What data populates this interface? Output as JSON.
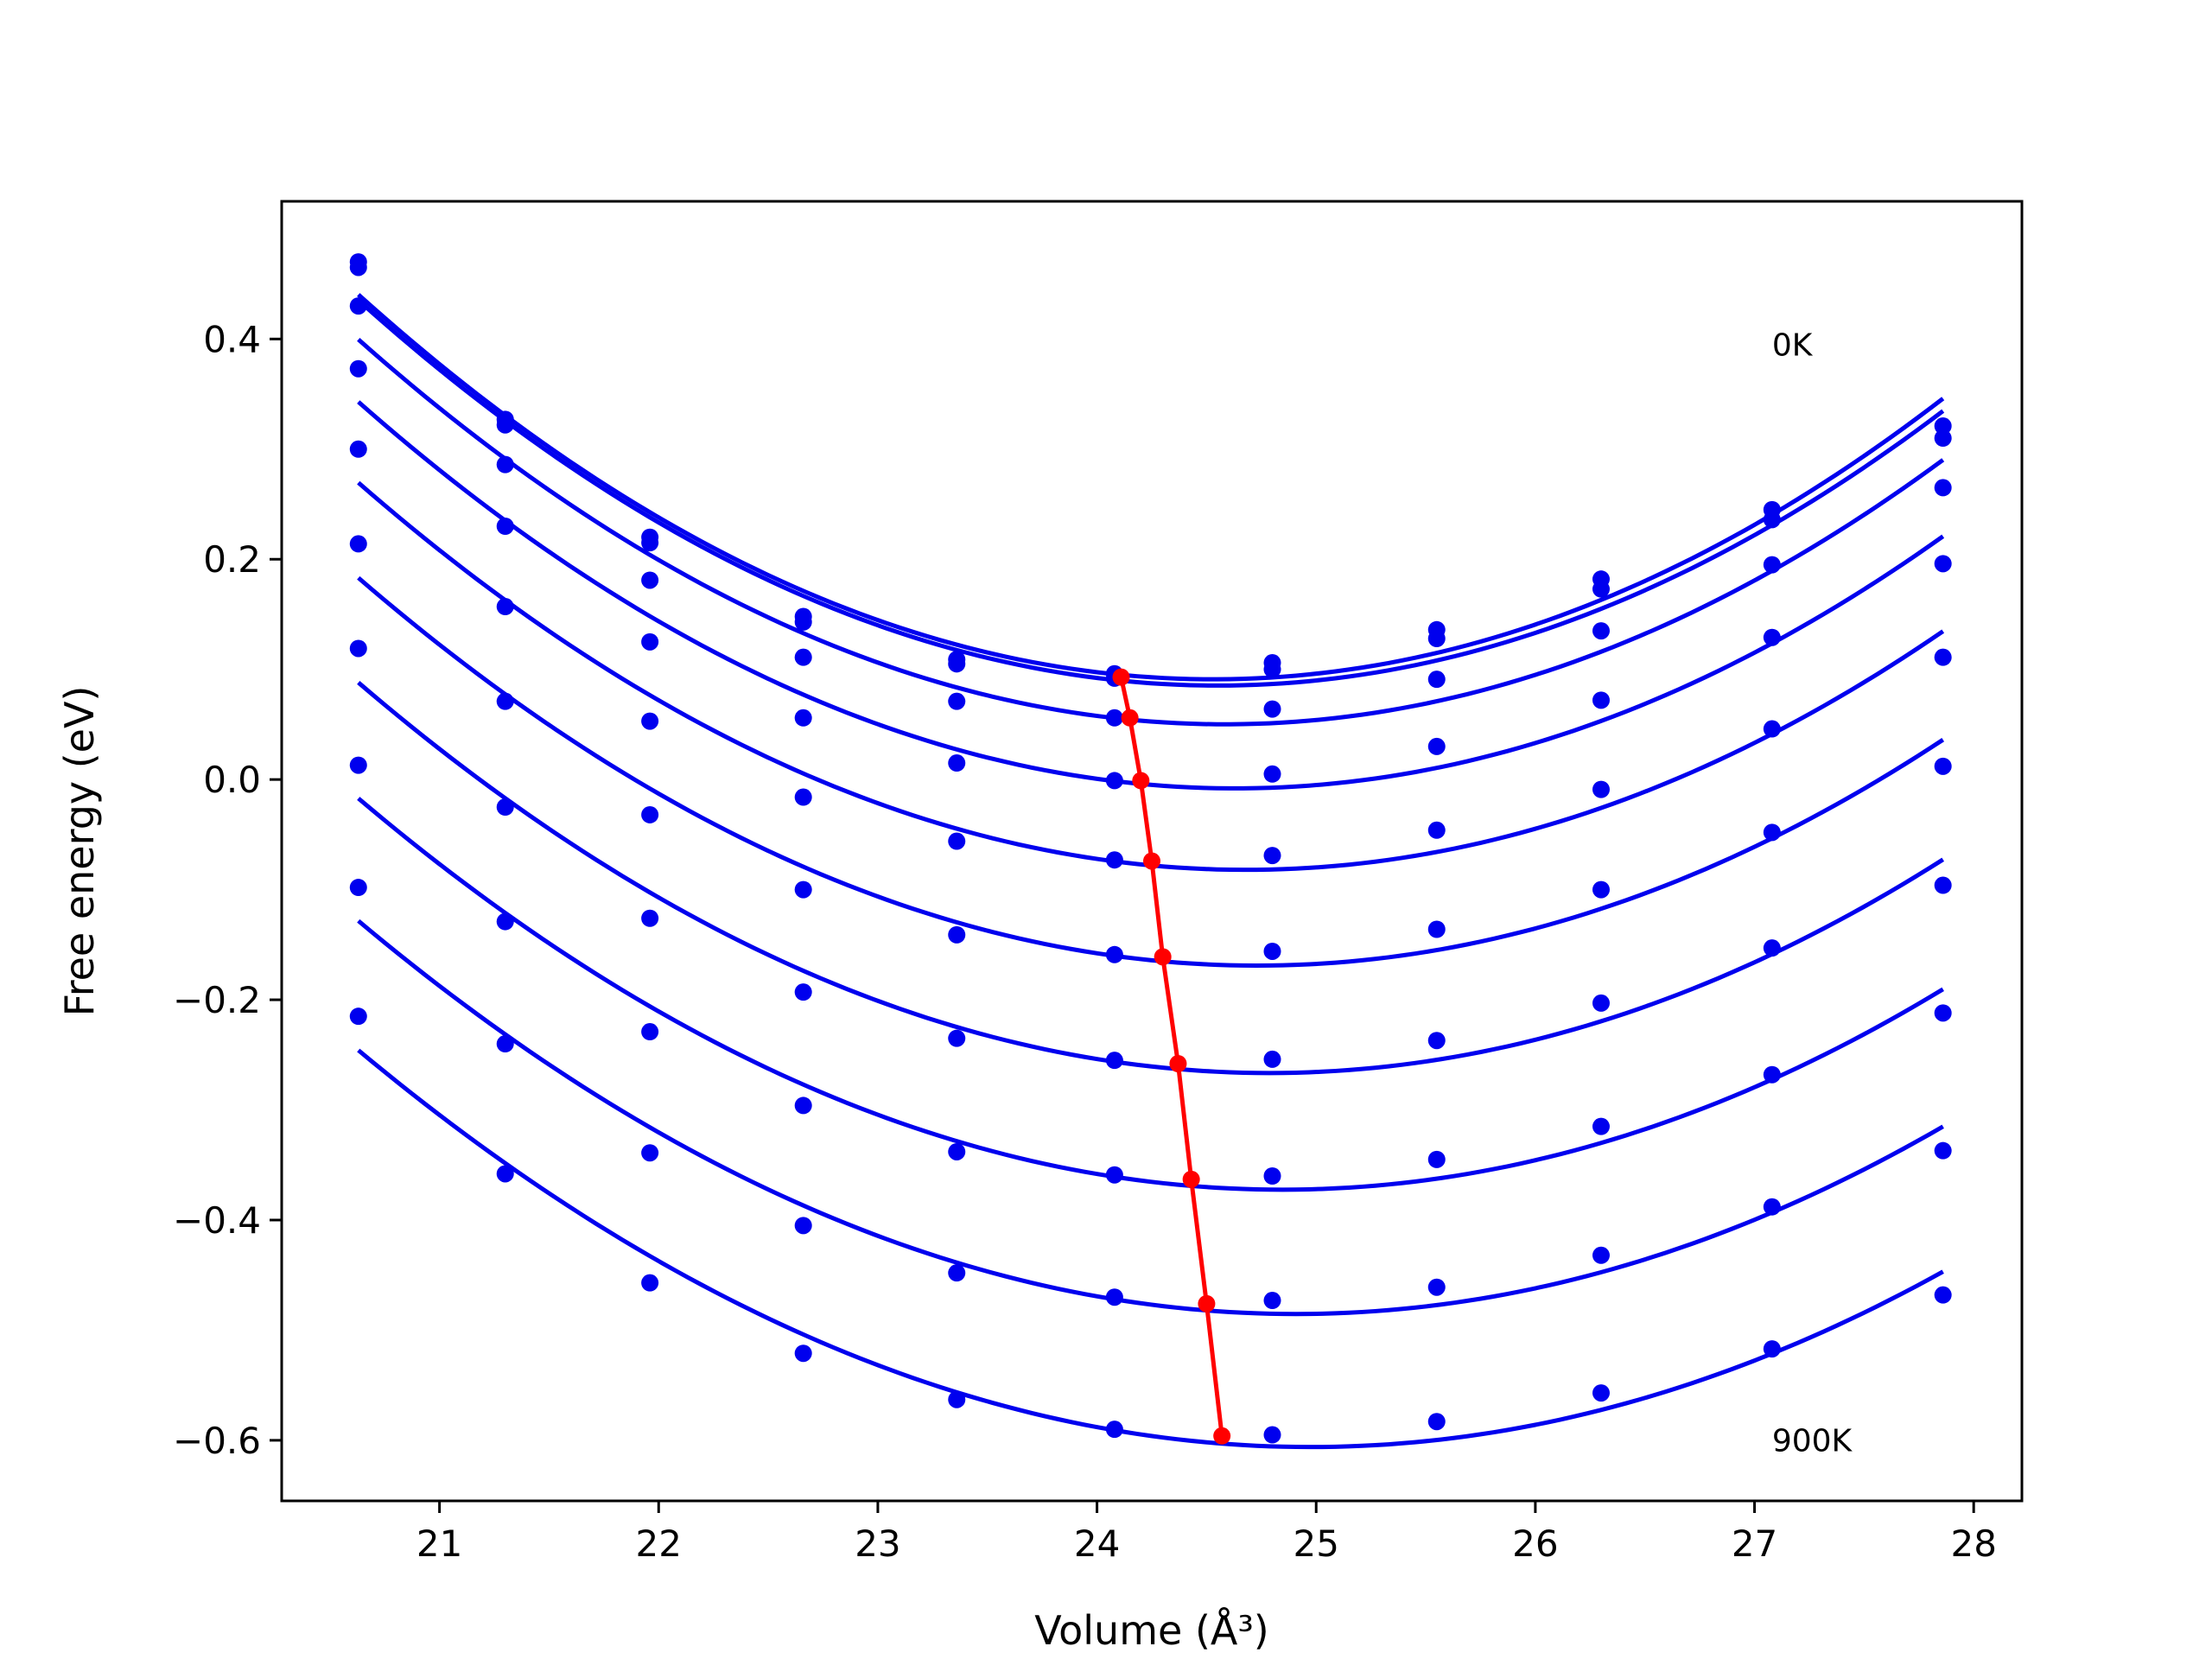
{
  "chart_data": {
    "type": "line",
    "xlabel": "Volume (Å³)",
    "ylabel": "Free energy (eV)",
    "xlim": [
      20.28,
      28.22
    ],
    "ylim": [
      -0.655,
      0.525
    ],
    "xticks": [
      21,
      22,
      23,
      24,
      25,
      26,
      27,
      28
    ],
    "yticks": [
      0.4,
      0.2,
      0.0,
      -0.2,
      -0.4,
      -0.6
    ],
    "ytick_labels": [
      "0.4",
      "0.2",
      "0.0",
      "−0.2",
      "−0.4",
      "−0.6"
    ],
    "grid": false,
    "annotations": [
      {
        "text": "0K",
        "x": 27.08,
        "y": 0.385
      },
      {
        "text": "900K",
        "x": 27.08,
        "y": -0.61
      }
    ],
    "x": [
      20.63,
      21.3,
      21.96,
      22.66,
      23.36,
      24.08,
      24.8,
      25.55,
      26.3,
      27.08,
      27.86
    ],
    "series": [
      {
        "values": [
          0.47,
          0.327,
          0.22,
          0.148,
          0.109,
          0.096,
          0.106,
          0.136,
          0.182,
          0.245,
          0.321
        ]
      },
      {
        "values": [
          0.465,
          0.322,
          0.215,
          0.143,
          0.105,
          0.092,
          0.1,
          0.128,
          0.173,
          0.236,
          0.31
        ]
      },
      {
        "values": [
          0.43,
          0.286,
          0.181,
          0.111,
          0.071,
          0.056,
          0.064,
          0.091,
          0.135,
          0.195,
          0.265
        ]
      },
      {
        "values": [
          0.373,
          0.23,
          0.125,
          0.056,
          0.015,
          -0.001,
          0.005,
          0.03,
          0.072,
          0.129,
          0.196
        ]
      },
      {
        "values": [
          0.3,
          0.157,
          0.053,
          -0.016,
          -0.056,
          -0.073,
          -0.069,
          -0.046,
          -0.009,
          0.046,
          0.111
        ]
      },
      {
        "values": [
          0.214,
          0.071,
          -0.032,
          -0.1,
          -0.141,
          -0.159,
          -0.156,
          -0.136,
          -0.1,
          -0.048,
          0.012
        ]
      },
      {
        "values": [
          0.119,
          -0.025,
          -0.126,
          -0.193,
          -0.235,
          -0.255,
          -0.254,
          -0.237,
          -0.203,
          -0.153,
          -0.096
        ]
      },
      {
        "values": [
          0.013,
          -0.129,
          -0.229,
          -0.296,
          -0.338,
          -0.359,
          -0.36,
          -0.345,
          -0.315,
          -0.268,
          -0.212
        ]
      },
      {
        "values": [
          -0.098,
          -0.24,
          -0.339,
          -0.405,
          -0.448,
          -0.47,
          -0.473,
          -0.461,
          -0.432,
          -0.388,
          -0.337
        ]
      },
      {
        "values": [
          -0.215,
          -0.358,
          -0.457,
          -0.521,
          -0.563,
          -0.59,
          -0.595,
          -0.583,
          -0.557,
          -0.517,
          -0.468
        ]
      }
    ],
    "minima": {
      "x": [
        24.11,
        24.15,
        24.2,
        24.25,
        24.3,
        24.37,
        24.43,
        24.5,
        24.57
      ],
      "y": [
        0.093,
        0.056,
        -0.001,
        -0.074,
        -0.161,
        -0.258,
        -0.363,
        -0.476,
        -0.596
      ]
    },
    "colors": {
      "curves": "#0000ee",
      "minima": "#ff0000",
      "frame": "#000000"
    }
  }
}
